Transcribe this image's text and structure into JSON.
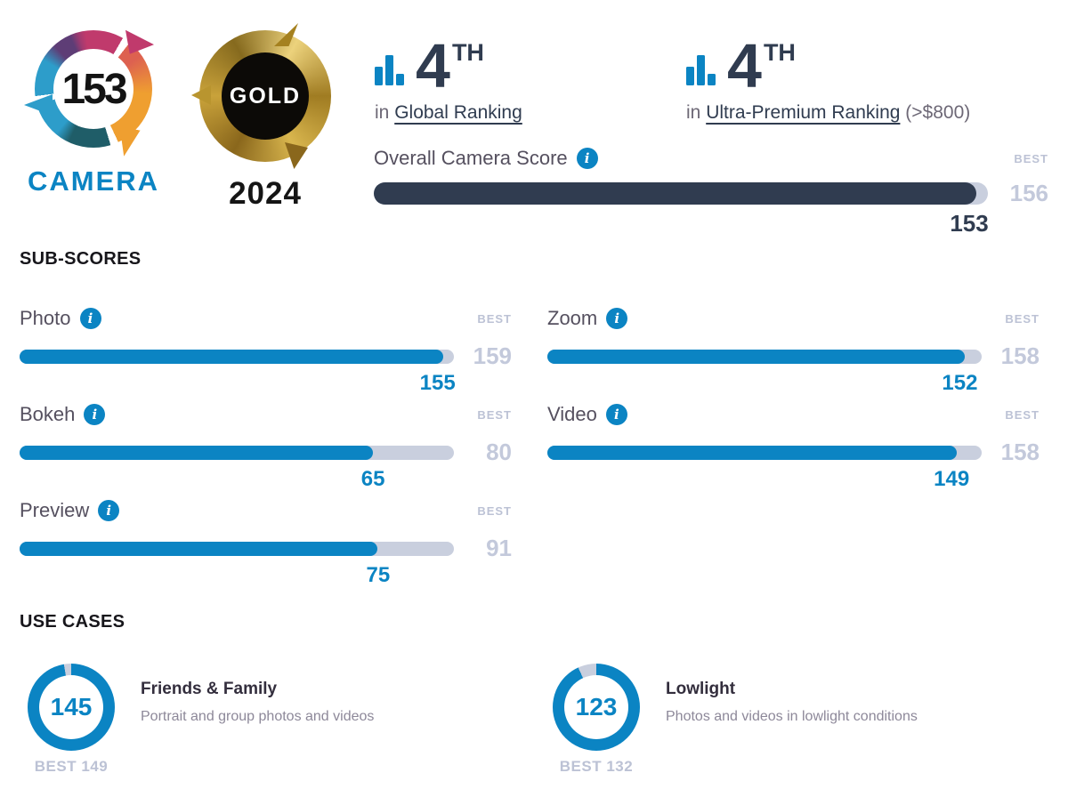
{
  "colors": {
    "blue": "#0b84c3",
    "navy": "#303c50",
    "track": "#c9cfde",
    "muted": "#bcc2d5",
    "label": "#55505f",
    "gray": "#6d6876",
    "heading": "#17161b",
    "desc": "#8d8899",
    "title": "#332e3d"
  },
  "icons": {
    "info_glyph": "i"
  },
  "header": {
    "camera_badge": {
      "score": "153",
      "label": "CAMERA"
    },
    "award_badge": {
      "medal": "GOLD",
      "year": "2024"
    },
    "rankings": [
      {
        "rank": "4",
        "ordinal": "TH",
        "prefix": "in",
        "link": "Global Ranking",
        "suffix": ""
      },
      {
        "rank": "4",
        "ordinal": "TH",
        "prefix": "in",
        "link": "Ultra-Premium Ranking",
        "suffix": "(>$800)"
      }
    ],
    "overall": {
      "label": "Overall Camera Score",
      "best_label": "BEST",
      "score": 153,
      "best": 156
    }
  },
  "subscores": {
    "heading": "SUB-SCORES",
    "best_label": "BEST",
    "items": [
      {
        "label": "Photo",
        "score": 155,
        "best": 159
      },
      {
        "label": "Bokeh",
        "score": 65,
        "best": 80
      },
      {
        "label": "Preview",
        "score": 75,
        "best": 91
      },
      {
        "label": "Zoom",
        "score": 152,
        "best": 158
      },
      {
        "label": "Video",
        "score": 149,
        "best": 158
      }
    ]
  },
  "use_cases": {
    "heading": "USE CASES",
    "items": [
      {
        "title": "Friends & Family",
        "description": "Portrait and group photos and videos",
        "score": 145,
        "best": 149,
        "best_text": "BEST 149"
      },
      {
        "title": "Lowlight",
        "description": "Photos and videos in lowlight conditions",
        "score": 123,
        "best": 132,
        "best_text": "BEST 132"
      }
    ]
  },
  "chart_data": [
    {
      "type": "bar",
      "title": "Overall Camera Score",
      "orientation": "horizontal",
      "categories": [
        "Overall Camera Score"
      ],
      "values": [
        153
      ],
      "best_values": [
        156
      ],
      "xlim": [
        0,
        156
      ],
      "note": "bar fill length = score / best score; track full width = best"
    },
    {
      "type": "bar",
      "title": "SUB-SCORES",
      "orientation": "horizontal",
      "categories": [
        "Photo",
        "Bokeh",
        "Preview",
        "Zoom",
        "Video"
      ],
      "values": [
        155,
        65,
        75,
        152,
        149
      ],
      "best_values": [
        159,
        80,
        91,
        158,
        158
      ],
      "note": "each bar scaled to its own best score"
    },
    {
      "type": "pie",
      "title": "USE CASES",
      "style": "donut gauge, fill fraction = score / best",
      "categories": [
        "Friends & Family",
        "Lowlight"
      ],
      "values": [
        145,
        123
      ],
      "best_values": [
        149,
        132
      ]
    }
  ]
}
